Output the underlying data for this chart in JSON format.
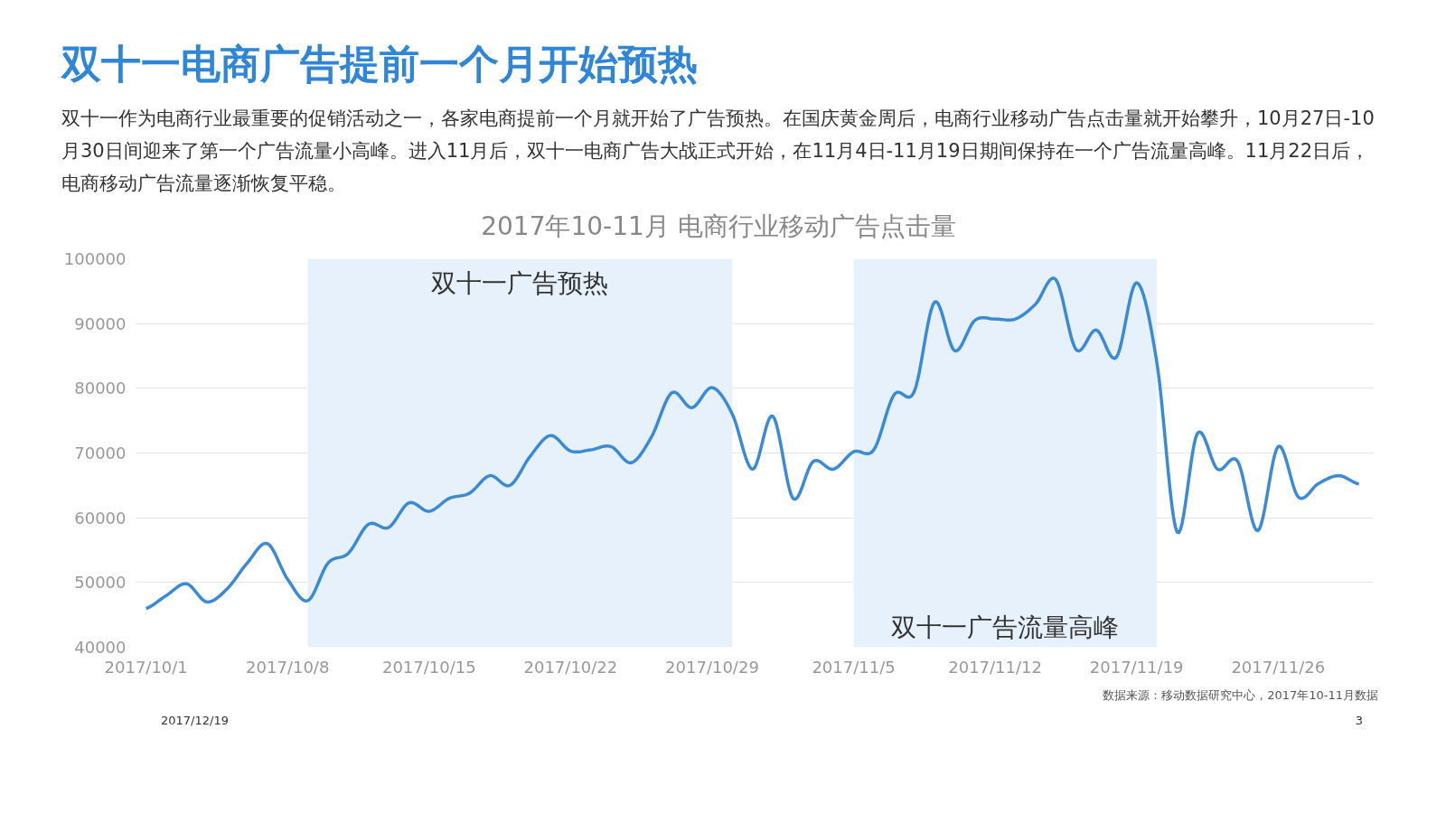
{
  "chart_data": {
    "type": "line",
    "title": "双十一电商广告提前一个月开始预热",
    "subtitle": "双十一作为电商行业最重要的促销活动之一，各家电商提前一个月就开始了广告预热。在国庆黄金周后，电商行业移动广告点击量就开始攀升，10月27日-10月30日间迎来了第一个广告流量小高峰。进入11月后，双十一电商广告大战正式开始，在11月4日-11月19日期间保持在一个广告流量高峰。11月22日后，电商移动广告流量逐渐恢复平稳。",
    "annotations": [
      "2017年10-11月  电商行业移动广告点击量",
      "数据来源：移动数据研究中心，2017年10-11月数据",
      "2017/12/19",
      "3"
    ],
    "x": [
      "2017-10-01",
      "2017-10-02",
      "2017-10-03",
      "2017-10-04",
      "2017-10-05",
      "2017-10-06",
      "2017-10-07",
      "2017-10-08",
      "2017-10-09",
      "2017-10-10",
      "2017-10-11",
      "2017-10-12",
      "2017-10-13",
      "2017-10-14",
      "2017-10-15",
      "2017-10-16",
      "2017-10-17",
      "2017-10-18",
      "2017-10-19",
      "2017-10-20",
      "2017-10-21",
      "2017-10-22",
      "2017-10-23",
      "2017-10-24",
      "2017-10-25",
      "2017-10-26",
      "2017-10-27",
      "2017-10-28",
      "2017-10-29",
      "2017-10-30",
      "2017-10-31",
      "2017-11-01",
      "2017-11-02",
      "2017-11-03",
      "2017-11-04",
      "2017-11-05",
      "2017-11-06",
      "2017-11-07",
      "2017-11-08",
      "2017-11-09",
      "2017-11-10",
      "2017-11-11",
      "2017-11-12",
      "2017-11-13",
      "2017-11-14",
      "2017-11-15",
      "2017-11-16",
      "2017-11-17",
      "2017-11-18",
      "2017-11-19",
      "2017-11-20",
      "2017-11-21",
      "2017-11-22",
      "2017-11-23",
      "2017-11-24",
      "2017-11-25",
      "2017-11-26",
      "2017-11-27",
      "2017-11-28",
      "2017-11-29",
      "2017-11-30"
    ],
    "series": [
      {
        "color": "#3a8ad8",
        "values": [
          46000,
          48000,
          49800,
          47000,
          49000,
          53000,
          56000,
          50500,
          47200,
          53000,
          54500,
          59000,
          58500,
          62300,
          61000,
          63000,
          63800,
          66500,
          65000,
          69500,
          72700,
          70300,
          70500,
          71000,
          68500,
          72500,
          79300,
          77000,
          80100,
          76000,
          67500,
          75700,
          63000,
          68700,
          67500,
          70200,
          70500,
          79000,
          79500,
          93300,
          85800,
          90500,
          90700,
          90700,
          93000,
          96800,
          86000,
          89000,
          84800,
          96300,
          84000,
          57800,
          73000,
          67500,
          68700,
          58000,
          71000,
          63200,
          65300,
          66500,
          65200
        ]
      }
    ],
    "xlim": [
      "2017-09-30T12:00",
      "2017-11-30T18:00"
    ],
    "xticks": [
      {
        "value": "2017-10-01",
        "label": "2017/10/1"
      },
      {
        "value": "2017-10-08",
        "label": "2017/10/8"
      },
      {
        "value": "2017-10-15",
        "label": "2017/10/15"
      },
      {
        "value": "2017-10-22",
        "label": "2017/10/22"
      },
      {
        "value": "2017-10-29",
        "label": "2017/10/29"
      },
      {
        "value": "2017-11-05",
        "label": "2017/11/5"
      },
      {
        "value": "2017-11-12",
        "label": "2017/11/12"
      },
      {
        "value": "2017-11-19",
        "label": "2017/11/19"
      },
      {
        "value": "2017-11-26",
        "label": "2017/11/26"
      }
    ],
    "ylim": [
      40000,
      100000
    ],
    "yticks": [
      40000,
      50000,
      60000,
      70000,
      80000,
      90000,
      100000
    ],
    "bands": [
      {
        "axis": "x",
        "from": "2017-10-09",
        "to": "2017-10-30",
        "label": "双十一广告预热",
        "color": "#e6f1fc"
      },
      {
        "axis": "x",
        "from": "2017-11-05",
        "to": "2017-11-20",
        "label": "双十一广告流量高峰",
        "color": "#e6f1fc"
      }
    ],
    "grid": "y",
    "line_style": "solid",
    "marker": "none"
  }
}
